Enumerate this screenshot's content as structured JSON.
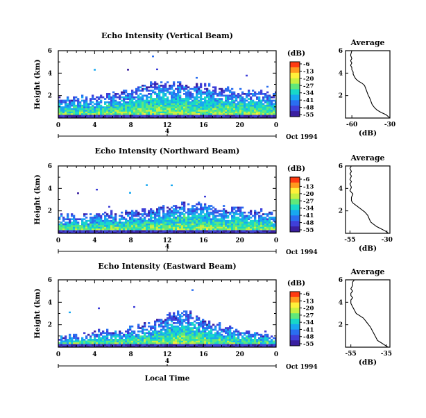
{
  "x_axis_label": "Local Time",
  "date_label": "Oct 1994",
  "colorbar": {
    "unit_label": "(dB)",
    "ticks": [
      "-6",
      "-13",
      "-20",
      "-27",
      "-34",
      "-41",
      "-48",
      "-55"
    ],
    "colors": [
      "#ff3b12",
      "#ff9a1e",
      "#fff03a",
      "#c8f040",
      "#5fe87a",
      "#18d8c8",
      "#18a8f0",
      "#2a6ef0",
      "#3f3fd8",
      "#3a1fa0"
    ]
  },
  "chart_data": [
    {
      "type": "heatmap",
      "title": "Echo Intensity (Vertical Beam)",
      "xlabel": "",
      "ylabel": "Height (km)",
      "xlim": [
        0,
        24
      ],
      "ylim": [
        0,
        6
      ],
      "xticks": [
        "0",
        "4",
        "8",
        "12",
        "16",
        "20",
        "0"
      ],
      "yticks": [
        "2",
        "4",
        "6"
      ],
      "secondary_axis_tick": "4",
      "cloud_top_km": [
        1.8,
        1.8,
        1.7,
        1.8,
        1.9,
        2.0,
        2.2,
        2.3,
        2.5,
        2.8,
        3.0,
        3.1,
        3.2,
        3.1,
        2.9,
        2.8,
        2.9,
        2.8,
        2.6,
        2.5,
        2.4,
        2.3,
        2.3,
        2.2,
        2.1
      ]
    },
    {
      "type": "heatmap",
      "title": "Echo Intensity (Northward Beam)",
      "xlabel": "",
      "ylabel": "Height (km)",
      "xlim": [
        0,
        24
      ],
      "ylim": [
        0,
        6
      ],
      "xticks": [
        "0",
        "4",
        "8",
        "12",
        "16",
        "20",
        "0"
      ],
      "yticks": [
        "2",
        "4",
        "6"
      ],
      "secondary_axis_tick": "4",
      "cloud_top_km": [
        1.6,
        1.5,
        1.5,
        1.6,
        1.7,
        1.8,
        1.8,
        1.7,
        1.8,
        1.9,
        2.0,
        2.1,
        2.3,
        2.5,
        2.7,
        2.8,
        2.7,
        2.5,
        2.3,
        2.2,
        2.1,
        2.0,
        1.9,
        1.8,
        1.7
      ]
    },
    {
      "type": "heatmap",
      "title": "Echo Intensity (Eastward Beam)",
      "xlabel": "",
      "ylabel": "Height (km)",
      "xlim": [
        0,
        24
      ],
      "ylim": [
        0,
        6
      ],
      "xticks": [
        "0",
        "4",
        "8",
        "12",
        "16",
        "20",
        "0"
      ],
      "yticks": [
        "2",
        "4",
        "6"
      ],
      "secondary_axis_tick": "4",
      "cloud_top_km": [
        0.8,
        0.9,
        1.0,
        1.1,
        1.3,
        1.4,
        1.4,
        1.5,
        1.6,
        1.8,
        2.0,
        2.3,
        2.7,
        3.0,
        3.1,
        2.8,
        2.4,
        2.1,
        1.8,
        1.6,
        1.4,
        1.3,
        1.2,
        1.1,
        1.0
      ]
    },
    {
      "type": "line",
      "title": "Average",
      "xlabel": "(dB)",
      "ylabel": "",
      "xlim": [
        -65,
        -30
      ],
      "ylim": [
        0,
        6
      ],
      "xticks": [
        "-60",
        "-30"
      ],
      "yticks": [
        "2",
        "4",
        "6"
      ],
      "x": [
        -30,
        -33,
        -37,
        -40,
        -42,
        -44,
        -45,
        -46,
        -47,
        -48,
        -49,
        -50,
        -52,
        -55,
        -57,
        -58,
        -59,
        -59,
        -60,
        -60,
        -61,
        -60,
        -61,
        -60,
        -61,
        -60
      ],
      "y": [
        0,
        0.3,
        0.5,
        0.7,
        0.9,
        1.2,
        1.5,
        1.8,
        2.0,
        2.3,
        2.6,
        2.9,
        3.1,
        3.3,
        3.5,
        3.7,
        3.9,
        4.1,
        4.3,
        4.5,
        4.7,
        4.9,
        5.1,
        5.3,
        5.6,
        6.0
      ]
    },
    {
      "type": "line",
      "title": "Average",
      "xlabel": "(dB)",
      "ylabel": "",
      "xlim": [
        -58,
        -28
      ],
      "ylim": [
        0,
        6
      ],
      "xticks": [
        "-55",
        "-30"
      ],
      "yticks": [
        "2",
        "4",
        "6"
      ],
      "x": [
        -29,
        -31,
        -34,
        -37,
        -39,
        -41,
        -42,
        -43,
        -45,
        -47,
        -49,
        -51,
        -53,
        -54,
        -54,
        -53,
        -55,
        -54,
        -55,
        -54,
        -55,
        -54,
        -55,
        -54,
        -55,
        -54
      ],
      "y": [
        0,
        0.2,
        0.4,
        0.6,
        0.8,
        1.0,
        1.3,
        1.6,
        1.9,
        2.1,
        2.3,
        2.5,
        2.7,
        2.9,
        3.2,
        3.5,
        3.8,
        4.1,
        4.4,
        4.6,
        4.8,
        5.1,
        5.3,
        5.5,
        5.8,
        6.0
      ]
    },
    {
      "type": "line",
      "title": "Average",
      "xlabel": "(dB)",
      "ylabel": "",
      "xlim": [
        -58,
        -33
      ],
      "ylim": [
        0,
        6
      ],
      "xticks": [
        "-55",
        "-35"
      ],
      "yticks": [
        "2",
        "4",
        "6"
      ],
      "x": [
        -34,
        -36,
        -38,
        -40,
        -41,
        -42,
        -43,
        -44,
        -45,
        -46,
        -47,
        -48,
        -50,
        -52,
        -53,
        -54,
        -55,
        -55,
        -54,
        -55,
        -55,
        -54,
        -55,
        -54,
        -54,
        -53
      ],
      "y": [
        0,
        0.2,
        0.4,
        0.6,
        0.9,
        1.2,
        1.5,
        1.8,
        2.0,
        2.2,
        2.4,
        2.6,
        2.8,
        3.0,
        3.3,
        3.6,
        3.9,
        4.2,
        4.4,
        4.6,
        4.8,
        5.0,
        5.2,
        5.5,
        5.8,
        6.0
      ]
    }
  ]
}
